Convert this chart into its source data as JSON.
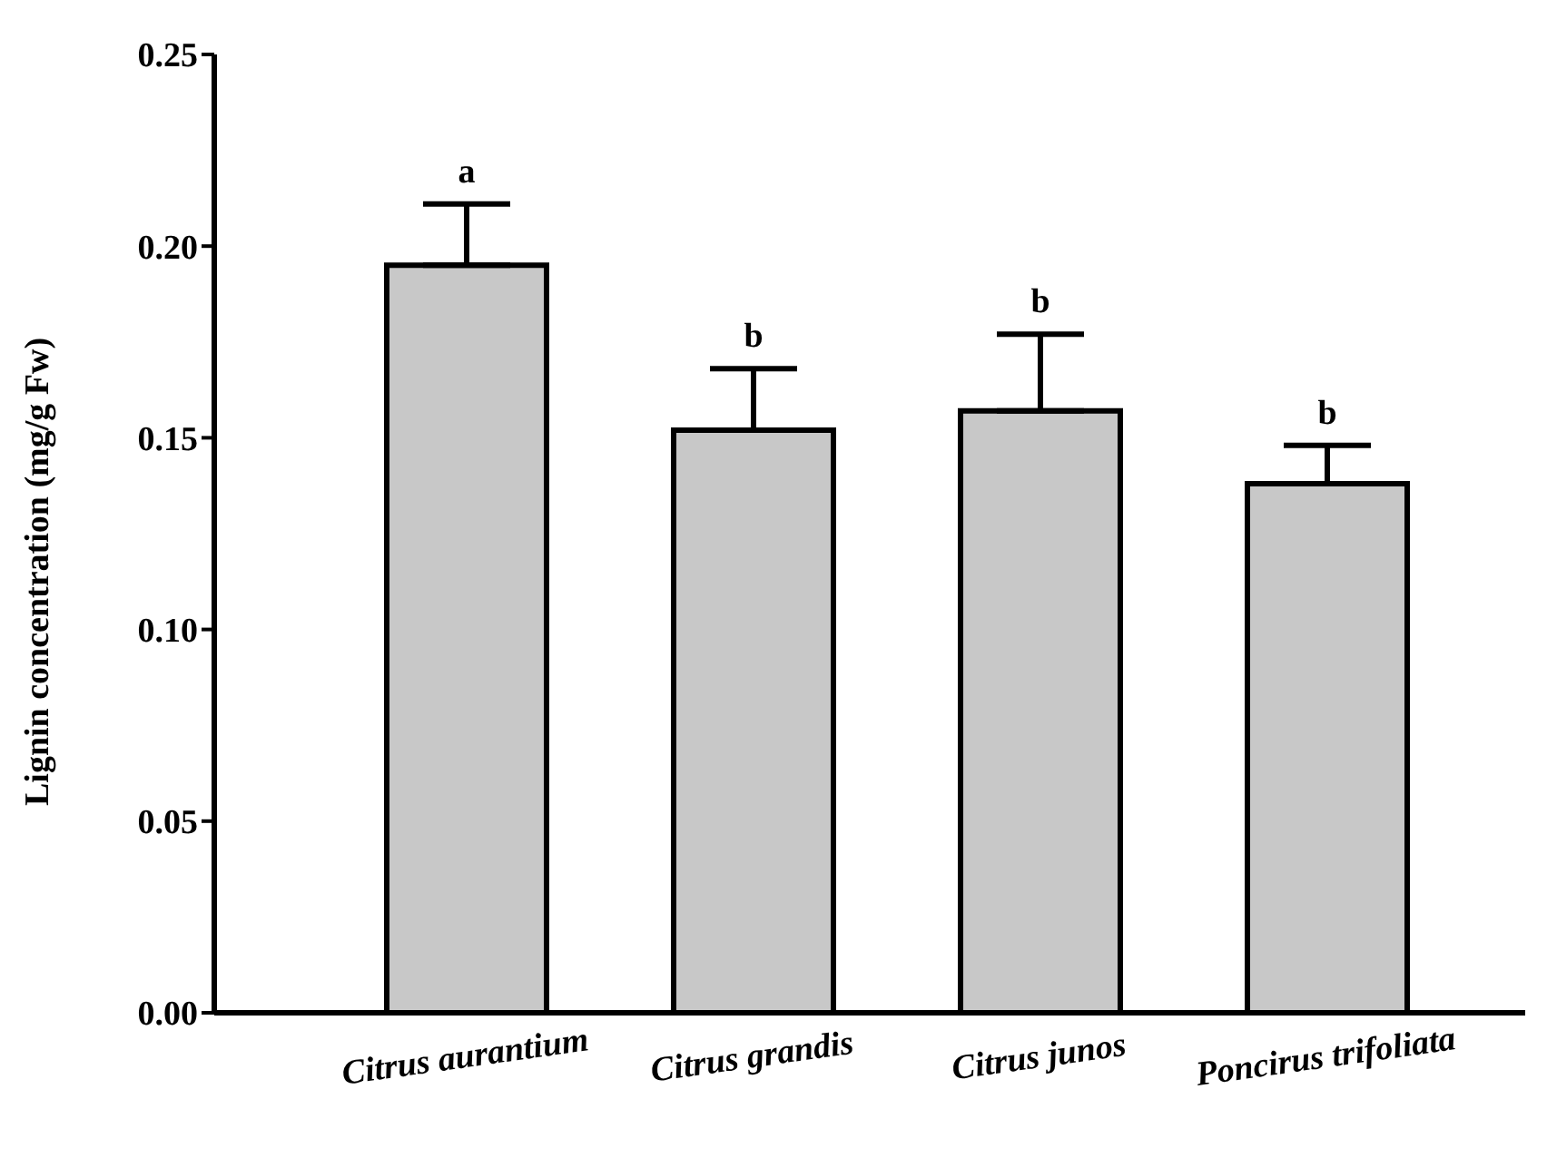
{
  "chart_data": {
    "type": "bar",
    "ylabel": "Lignin concentration (mg/g Fw)",
    "categories": [
      "Citrus aurantium",
      "Citrus grandis",
      "Citrus junos",
      "Poncirus trifoliata"
    ],
    "values": [
      0.195,
      0.152,
      0.157,
      0.138
    ],
    "errors": [
      0.016,
      0.016,
      0.02,
      0.01
    ],
    "color": "#c8c8c8",
    "ylim": [
      0,
      0.25
    ],
    "yticks": [
      {
        "value": 0,
        "label": "0.00"
      },
      {
        "value": 0.05,
        "label": "0.05"
      },
      {
        "value": 0.1,
        "label": "0.10"
      },
      {
        "value": 0.15,
        "label": "0.15"
      },
      {
        "value": 0.2,
        "label": "0.20"
      },
      {
        "value": 0.25,
        "label": "0.25"
      }
    ],
    "annotations": [
      {
        "text": "a",
        "x": "Citrus aurantium",
        "y": 0.211
      },
      {
        "text": "b",
        "x": "Citrus grandis",
        "y": 0.168
      },
      {
        "text": "b",
        "x": "Citrus junos",
        "y": 0.177
      },
      {
        "text": "b",
        "x": "Poncirus trifoliata",
        "y": 0.148
      }
    ],
    "tick_labels": true
  }
}
